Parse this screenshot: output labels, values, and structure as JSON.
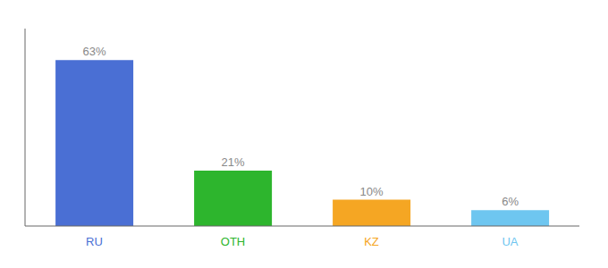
{
  "chart_data": {
    "type": "bar",
    "categories": [
      "RU",
      "OTH",
      "KZ",
      "UA"
    ],
    "values": [
      63,
      21,
      10,
      6
    ],
    "value_labels": [
      "63%",
      "21%",
      "10%",
      "6%"
    ],
    "colors": [
      "#4a6fd4",
      "#2db52d",
      "#f5a623",
      "#6ec6f0"
    ],
    "ylim": [
      0,
      75
    ],
    "data_labels": true,
    "tick_labels": "x",
    "grid": false
  }
}
